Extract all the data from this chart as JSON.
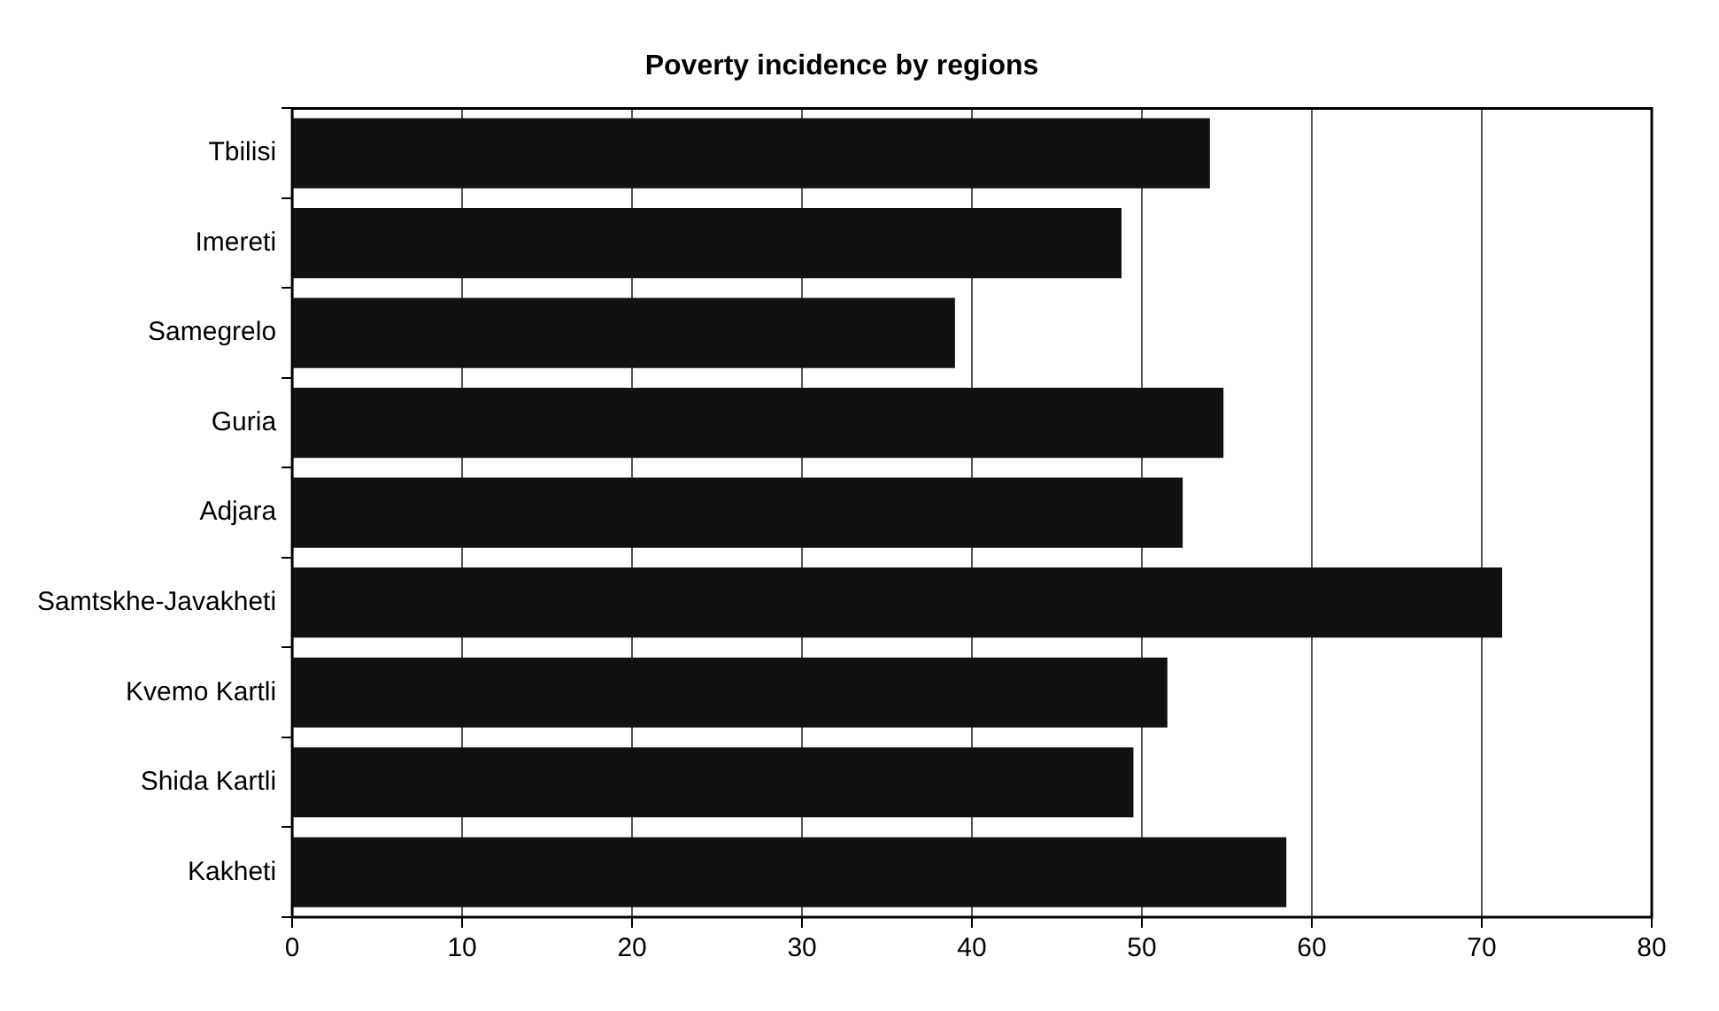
{
  "chart_data": {
    "type": "bar",
    "orientation": "horizontal",
    "title": "Poverty incidence by regions",
    "categories": [
      "Tbilisi",
      "Imereti",
      "Samegrelo",
      "Guria",
      "Adjara",
      "Samtskhe-Javakheti",
      "Kvemo Kartli",
      "Shida Kartli",
      "Kakheti"
    ],
    "values": [
      54,
      48.8,
      39,
      54.8,
      52.4,
      71.2,
      51.5,
      49.5,
      58.5
    ],
    "color": "#111111",
    "xlim": [
      0,
      80
    ],
    "xticks": [
      0,
      10,
      20,
      30,
      40,
      50,
      60,
      70,
      80
    ],
    "grid": "x"
  }
}
